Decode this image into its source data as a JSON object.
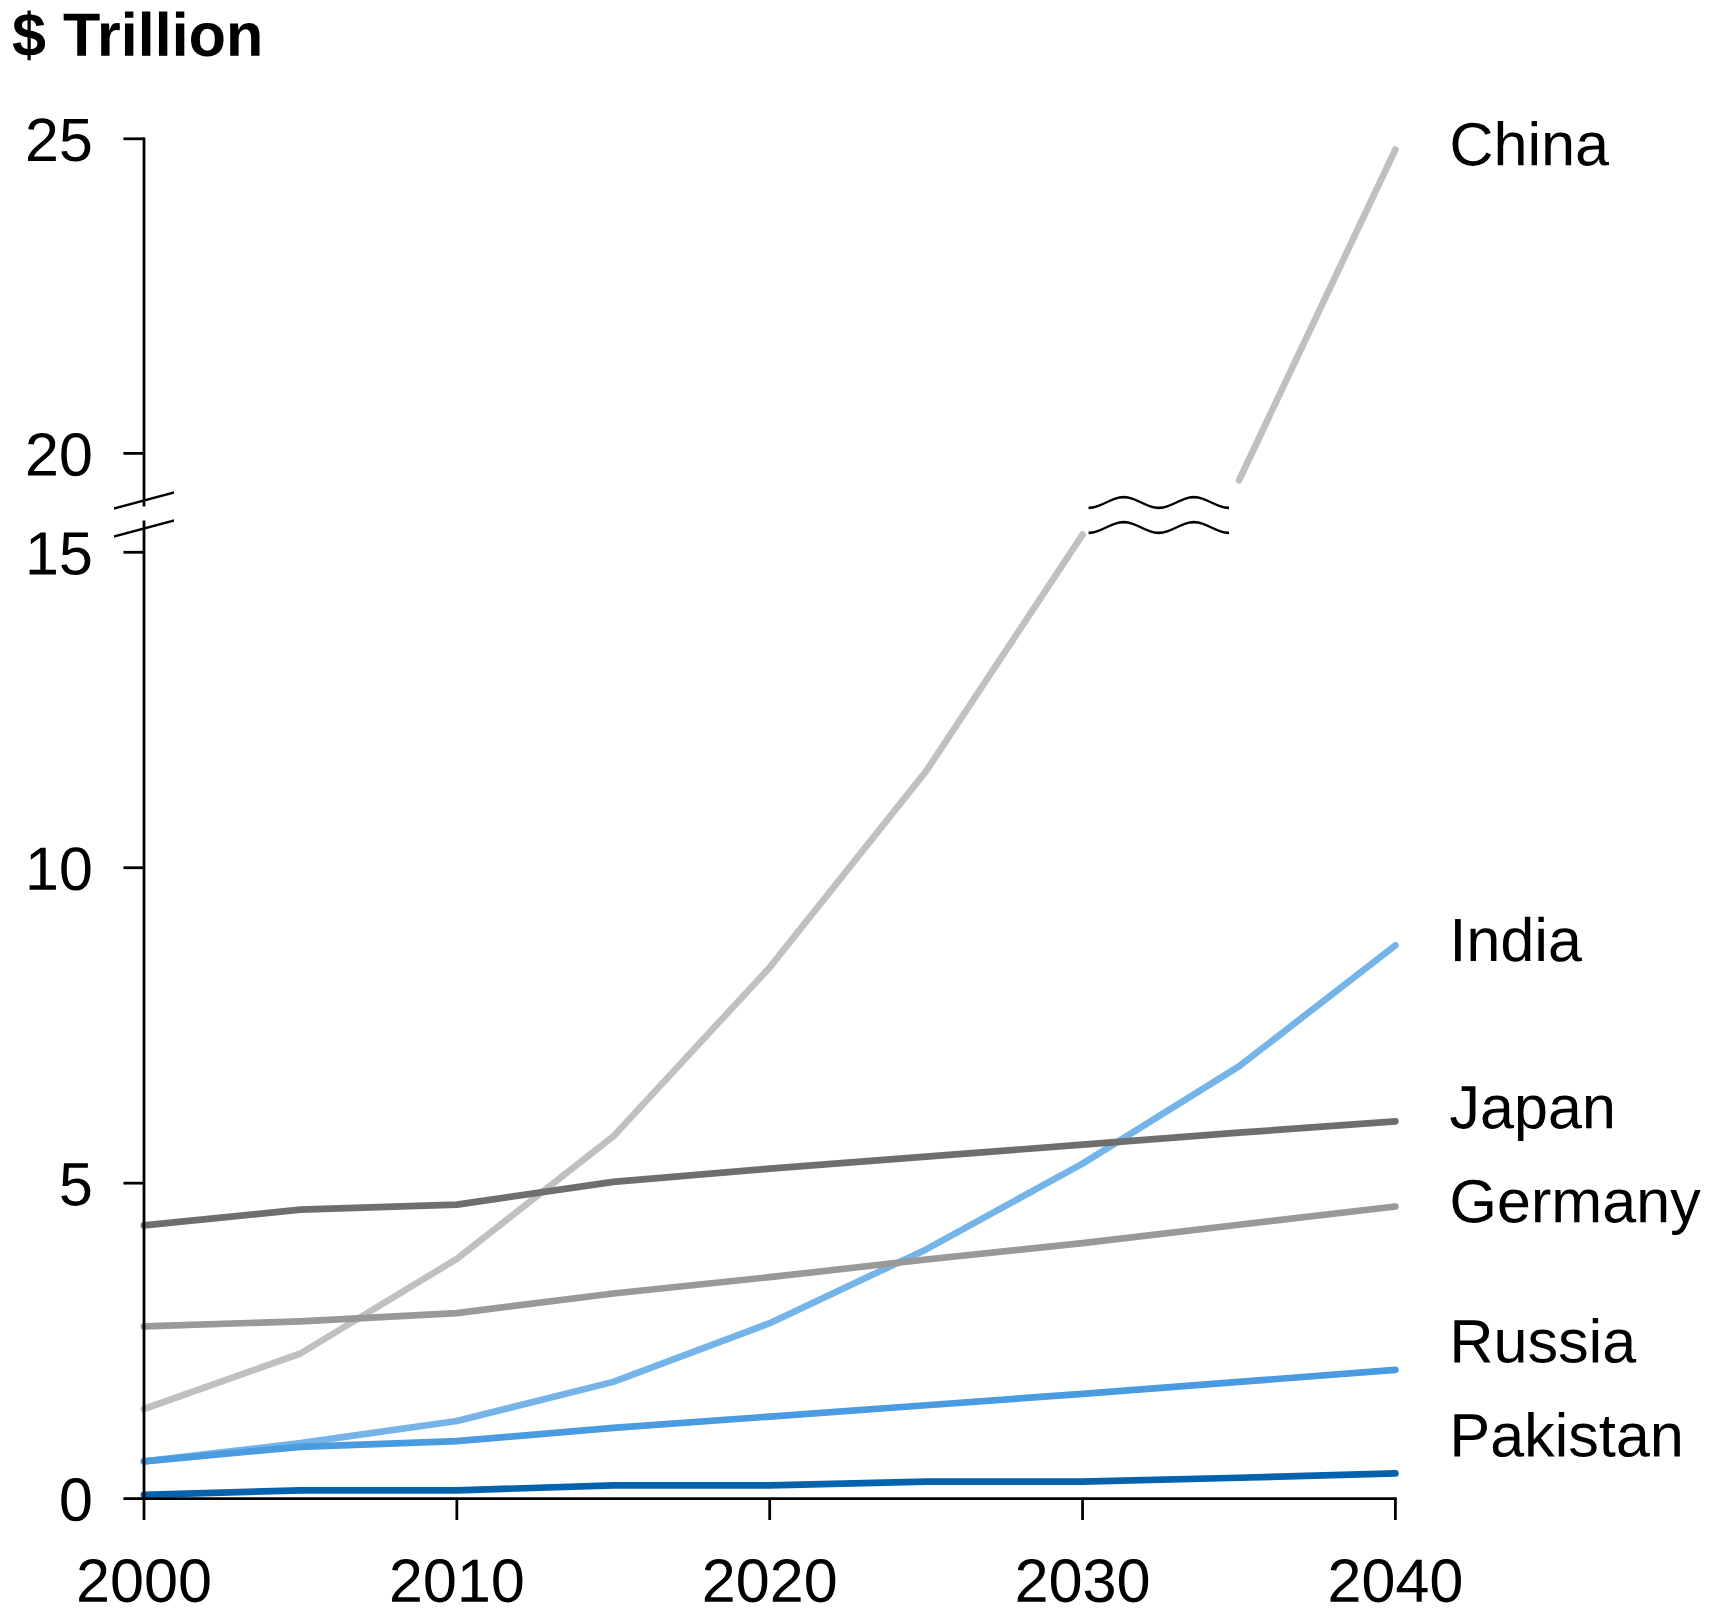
{
  "chart_data": [
    {
      "type": "line",
      "ylabel": "$ Trillion",
      "xlim": [
        2000,
        2040
      ],
      "ylim": [
        19.18,
        25
      ],
      "yticks": [
        20,
        25
      ],
      "tick_labels": "y",
      "series": [
        {
          "name": "China",
          "color": "#c0c0c0",
          "x": [
            2035,
            2040
          ],
          "values": [
            19.57,
            24.83
          ]
        }
      ]
    },
    {
      "type": "line",
      "x": [
        2000,
        2005,
        2010,
        2015,
        2020,
        2025,
        2030,
        2035,
        2040
      ],
      "xlim": [
        2000,
        2040
      ],
      "xticks": [
        2000,
        2010,
        2020,
        2030,
        2040
      ],
      "ylim": [
        0,
        15.48
      ],
      "yticks": [
        0,
        5,
        10,
        15
      ],
      "series": [
        {
          "color": "#c0c0c0",
          "x": [
            2000,
            2005,
            2010,
            2015,
            2020,
            2025,
            2030
          ],
          "values": [
            1.42,
            2.3,
            3.8,
            5.74,
            8.42,
            11.53,
            15.28
          ]
        },
        {
          "name": "India",
          "color": "#74b4e8",
          "values": [
            0.59,
            0.88,
            1.23,
            1.85,
            2.78,
            3.95,
            5.31,
            6.85,
            8.77
          ]
        },
        {
          "name": "Japan",
          "color": "#6e6e6e",
          "values": [
            4.33,
            4.58,
            4.66,
            5.02,
            5.23,
            5.42,
            5.61,
            5.8,
            5.98
          ]
        },
        {
          "name": "Germany",
          "color": "#999999",
          "values": [
            2.73,
            2.81,
            2.94,
            3.25,
            3.51,
            3.79,
            4.05,
            4.34,
            4.63
          ]
        },
        {
          "name": "Russia",
          "color": "#4a9be0",
          "values": [
            0.59,
            0.82,
            0.91,
            1.12,
            1.3,
            1.48,
            1.66,
            1.85,
            2.04
          ]
        },
        {
          "name": "Pakistan",
          "color": "#0563ad",
          "values": [
            0.06,
            0.13,
            0.13,
            0.21,
            0.21,
            0.27,
            0.27,
            0.33,
            0.4
          ]
        }
      ]
    }
  ]
}
